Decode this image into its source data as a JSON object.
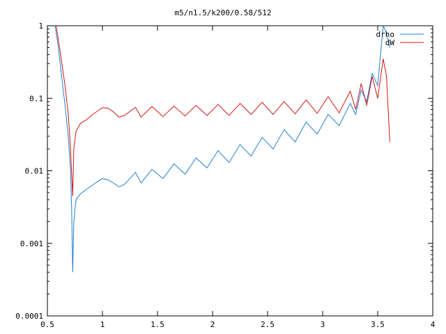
{
  "chart_data": {
    "type": "line",
    "title": "m5/n1.5/k200/0.58/512",
    "xlabel": "",
    "ylabel": "",
    "xlim": [
      0.5,
      4
    ],
    "ylim": [
      0.0001,
      1
    ],
    "yscale": "log",
    "grid": false,
    "legend_position": "top-right",
    "x_ticks": [
      "0.5",
      "1",
      "1.5",
      "2",
      "2.5",
      "3",
      "3.5",
      "4"
    ],
    "y_ticks": [
      "0.0001",
      "0.001",
      "0.01",
      "0.1",
      "1"
    ],
    "series": [
      {
        "name": "drho",
        "color": "#1f7fd0",
        "points": [
          [
            0.57,
            1.0
          ],
          [
            0.6,
            0.5
          ],
          [
            0.63,
            0.2
          ],
          [
            0.66,
            0.08
          ],
          [
            0.69,
            0.03
          ],
          [
            0.71,
            0.01
          ],
          [
            0.72,
            0.003
          ],
          [
            0.73,
            0.0004
          ],
          [
            0.74,
            0.002
          ],
          [
            0.76,
            0.004
          ],
          [
            0.8,
            0.0048
          ],
          [
            0.85,
            0.0055
          ],
          [
            0.9,
            0.0062
          ],
          [
            0.95,
            0.007
          ],
          [
            1.0,
            0.0078
          ],
          [
            1.05,
            0.0075
          ],
          [
            1.1,
            0.0068
          ],
          [
            1.15,
            0.006
          ],
          [
            1.2,
            0.0065
          ],
          [
            1.3,
            0.0095
          ],
          [
            1.35,
            0.0068
          ],
          [
            1.45,
            0.0105
          ],
          [
            1.55,
            0.0078
          ],
          [
            1.65,
            0.0125
          ],
          [
            1.75,
            0.009
          ],
          [
            1.85,
            0.015
          ],
          [
            1.95,
            0.011
          ],
          [
            2.05,
            0.019
          ],
          [
            2.15,
            0.013
          ],
          [
            2.25,
            0.023
          ],
          [
            2.35,
            0.016
          ],
          [
            2.45,
            0.029
          ],
          [
            2.55,
            0.02
          ],
          [
            2.65,
            0.037
          ],
          [
            2.75,
            0.025
          ],
          [
            2.85,
            0.047
          ],
          [
            2.95,
            0.032
          ],
          [
            3.05,
            0.06
          ],
          [
            3.15,
            0.042
          ],
          [
            3.25,
            0.085
          ],
          [
            3.3,
            0.06
          ],
          [
            3.35,
            0.13
          ],
          [
            3.4,
            0.09
          ],
          [
            3.45,
            0.22
          ],
          [
            3.5,
            0.15
          ],
          [
            3.55,
            1.0
          ],
          [
            3.58,
            0.8
          ],
          [
            3.61,
            0.5
          ]
        ]
      },
      {
        "name": "dW",
        "color": "#d01414",
        "points": [
          [
            0.58,
            1.0
          ],
          [
            0.62,
            0.4
          ],
          [
            0.66,
            0.15
          ],
          [
            0.69,
            0.06
          ],
          [
            0.71,
            0.02
          ],
          [
            0.73,
            0.0045
          ],
          [
            0.74,
            0.02
          ],
          [
            0.76,
            0.035
          ],
          [
            0.8,
            0.045
          ],
          [
            0.85,
            0.05
          ],
          [
            0.9,
            0.058
          ],
          [
            0.95,
            0.066
          ],
          [
            1.0,
            0.074
          ],
          [
            1.05,
            0.073
          ],
          [
            1.1,
            0.065
          ],
          [
            1.15,
            0.055
          ],
          [
            1.2,
            0.058
          ],
          [
            1.3,
            0.075
          ],
          [
            1.35,
            0.055
          ],
          [
            1.45,
            0.077
          ],
          [
            1.55,
            0.056
          ],
          [
            1.65,
            0.078
          ],
          [
            1.75,
            0.057
          ],
          [
            1.85,
            0.08
          ],
          [
            1.95,
            0.058
          ],
          [
            2.05,
            0.082
          ],
          [
            2.15,
            0.058
          ],
          [
            2.25,
            0.085
          ],
          [
            2.35,
            0.06
          ],
          [
            2.45,
            0.088
          ],
          [
            2.55,
            0.06
          ],
          [
            2.65,
            0.09
          ],
          [
            2.75,
            0.061
          ],
          [
            2.85,
            0.095
          ],
          [
            2.95,
            0.062
          ],
          [
            3.05,
            0.105
          ],
          [
            3.15,
            0.063
          ],
          [
            3.25,
            0.125
          ],
          [
            3.3,
            0.07
          ],
          [
            3.35,
            0.16
          ],
          [
            3.4,
            0.08
          ],
          [
            3.45,
            0.2
          ],
          [
            3.5,
            0.1
          ],
          [
            3.55,
            0.35
          ],
          [
            3.58,
            0.2
          ],
          [
            3.61,
            0.025
          ]
        ]
      }
    ]
  }
}
